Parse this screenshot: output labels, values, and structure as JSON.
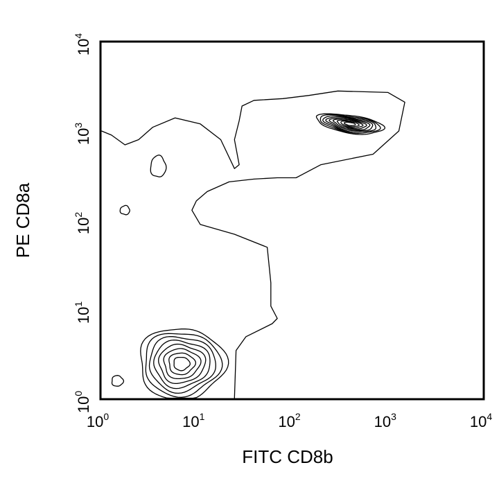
{
  "chart_data": {
    "type": "contour",
    "title": "",
    "xlabel": "FITC CD8b",
    "ylabel": "PE CD8a",
    "xscale": "log",
    "yscale": "log",
    "xlim": [
      1,
      10000
    ],
    "ylim": [
      1,
      10000
    ],
    "grid": false,
    "legend": "none",
    "x_ticks": [
      {
        "value": 1,
        "base": "10",
        "exp": "0"
      },
      {
        "value": 10,
        "base": "10",
        "exp": "1"
      },
      {
        "value": 100,
        "base": "10",
        "exp": "2"
      },
      {
        "value": 1000,
        "base": "10",
        "exp": "3"
      },
      {
        "value": 10000,
        "base": "10",
        "exp": "4"
      }
    ],
    "y_ticks": [
      {
        "value": 1,
        "base": "10",
        "exp": "0"
      },
      {
        "value": 10,
        "base": "10",
        "exp": "1"
      },
      {
        "value": 100,
        "base": "10",
        "exp": "2"
      },
      {
        "value": 1000,
        "base": "10",
        "exp": "3"
      },
      {
        "value": 10000,
        "base": "10",
        "exp": "4"
      }
    ],
    "populations": [
      {
        "center": [
          400,
          1200
        ],
        "log_sx": 0.35,
        "log_sy": 0.1,
        "levels": 9
      },
      {
        "center": [
          7,
          2.5
        ],
        "log_sx": 0.45,
        "log_sy": 0.4,
        "levels": 8
      },
      {
        "center": [
          1.5,
          1.6
        ],
        "log_sx": 0.06,
        "log_sy": 0.06,
        "levels": 1
      },
      {
        "center": [
          4,
          400
        ],
        "log_sx": 0.08,
        "log_sy": 0.12,
        "levels": 1
      },
      {
        "center": [
          1.8,
          130
        ],
        "log_sx": 0.05,
        "log_sy": 0.05,
        "levels": 1
      }
    ],
    "outer_boundary": [
      [
        1,
        1000
      ],
      [
        1.3,
        900
      ],
      [
        1.8,
        700
      ],
      [
        2.5,
        800
      ],
      [
        3.5,
        1100
      ],
      [
        6,
        1400
      ],
      [
        11,
        1200
      ],
      [
        18,
        800
      ],
      [
        25,
        380
      ],
      [
        28,
        420
      ],
      [
        25,
        800
      ],
      [
        28,
        1300
      ],
      [
        30,
        1900
      ],
      [
        40,
        2200
      ],
      [
        80,
        2300
      ],
      [
        150,
        2500
      ],
      [
        300,
        2800
      ],
      [
        1000,
        2700
      ],
      [
        1500,
        2100
      ],
      [
        1300,
        1000
      ],
      [
        700,
        550
      ],
      [
        200,
        420
      ],
      [
        110,
        300
      ],
      [
        70,
        300
      ],
      [
        40,
        290
      ],
      [
        22,
        270
      ],
      [
        13,
        210
      ],
      [
        10,
        165
      ],
      [
        9,
        130
      ],
      [
        11,
        90
      ],
      [
        25,
        70
      ],
      [
        55,
        50
      ],
      [
        60,
        20
      ],
      [
        60,
        11
      ],
      [
        70,
        8
      ],
      [
        62,
        7
      ],
      [
        33,
        5
      ],
      [
        26,
        3.5
      ],
      [
        25,
        1
      ]
    ]
  }
}
